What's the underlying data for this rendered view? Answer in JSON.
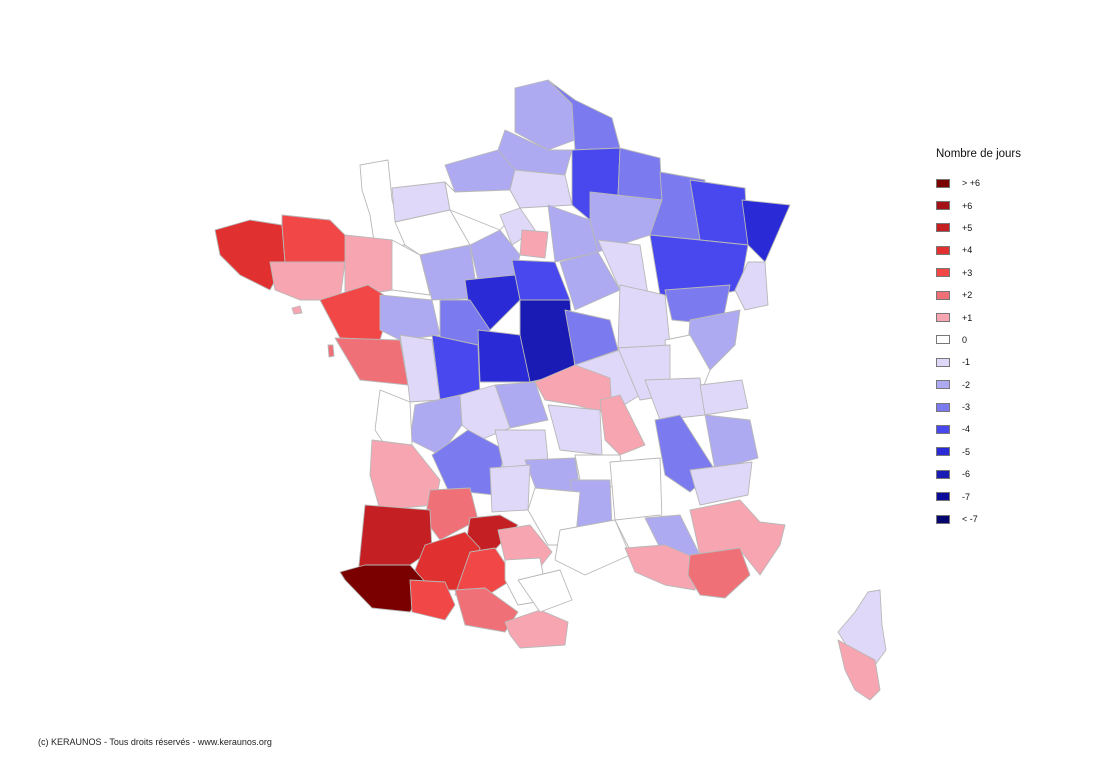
{
  "legend": {
    "title": "Nombre de jours",
    "items": [
      {
        "label": "> +6",
        "color": "#7a0000"
      },
      {
        "label": "+6",
        "color": "#a51216"
      },
      {
        "label": "+5",
        "color": "#c42024"
      },
      {
        "label": "+4",
        "color": "#e0302f"
      },
      {
        "label": "+3",
        "color": "#f24747"
      },
      {
        "label": "+2",
        "color": "#f07077"
      },
      {
        "label": "+1",
        "color": "#f7a5b0"
      },
      {
        "label": "0",
        "color": "#ffffff"
      },
      {
        "label": "-1",
        "color": "#e0d8f8"
      },
      {
        "label": "-2",
        "color": "#adaaf2"
      },
      {
        "label": "-3",
        "color": "#7b7aee"
      },
      {
        "label": "-4",
        "color": "#4848ee"
      },
      {
        "label": "-5",
        "color": "#2a2ad6"
      },
      {
        "label": "-6",
        "color": "#1a1ab4"
      },
      {
        "label": "-7",
        "color": "#0c0c9a"
      },
      {
        "label": "< -7",
        "color": "#05056e"
      }
    ]
  },
  "credit": "(c) KERAUNOS - Tous droits réservés - www.keraunos.org"
}
